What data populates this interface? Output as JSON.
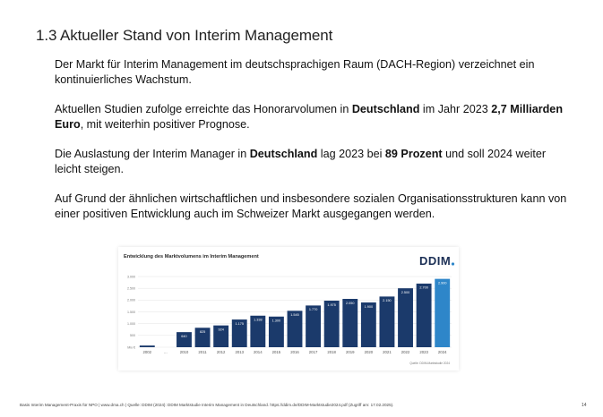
{
  "slide": {
    "title": "1.3 Aktueller Stand von Interim Management",
    "paragraphs": [
      [
        {
          "t": "Der Markt für Interim Management im deutschsprachigen Raum (DACH-Region) verzeichnet ein kontinuierliches Wachstum.",
          "b": false
        }
      ],
      [
        {
          "t": "Aktuellen Studien zufolge erreichte das Honorarvolumen in ",
          "b": false
        },
        {
          "t": "Deutschland",
          "b": true
        },
        {
          "t": " im Jahr 2023 ",
          "b": false
        },
        {
          "t": "2,7 Milliarden Euro",
          "b": true
        },
        {
          "t": ", mit weiterhin positiver Prognose.",
          "b": false
        }
      ],
      [
        {
          "t": "Die Auslastung der Interim Manager in ",
          "b": false
        },
        {
          "t": "Deutschland",
          "b": true
        },
        {
          "t": " lag 2023 bei ",
          "b": false
        },
        {
          "t": "89 Prozent",
          "b": true
        },
        {
          "t": " und soll 2024 weiter leicht steigen.",
          "b": false
        }
      ],
      [
        {
          "t": "Auf Grund der ähnlichen wirtschaftlichen und insbesondere sozialen Organisationsstrukturen kann von einer positiven Entwicklung auch im Schweizer Markt ausgegangen werden.",
          "b": false
        }
      ]
    ],
    "footer": "Basis Interim Management-Praxis für NPO | www.dma.ch | Quelle: DDIM (2024): DDIM Marktstudie Interim Management in Deutschland. https://ddim.de/DDIM-Marktstudie2024.pdf (Zugriff am: 17.02.2025).",
    "page_number": "14"
  },
  "chart_data": {
    "type": "bar",
    "title": "Entwicklung des Marktvolumens im Interim Management",
    "logo_text": "DDIM",
    "source": "Quelle: DDIM-Marktstudie 2024",
    "categories": [
      "2002",
      "...",
      "2010",
      "2011",
      "2012",
      "2013",
      "2014",
      "2015",
      "2016",
      "2017",
      "2018",
      "2019",
      "2020",
      "2021",
      "2022",
      "2023",
      "2024"
    ],
    "values": [
      70,
      null,
      640,
      825,
      924,
      1175,
      1338,
      1300,
      1545,
      1770,
      1975,
      2050,
      1900,
      2150,
      2500,
      2700,
      2900
    ],
    "value_labels": [
      "",
      "",
      "640",
      "825",
      "924",
      "1.175",
      "1.338",
      "1.300",
      "1.545",
      "1.770",
      "1.975",
      "2.050",
      "1.900",
      "2.150",
      "2.500",
      "2.700",
      "2.900"
    ],
    "yticks": [
      0,
      500,
      1000,
      1500,
      2000,
      2500,
      3000
    ],
    "ytick_labels": [
      "Mio €",
      "500",
      "1.000",
      "1.500",
      "2.000",
      "2.500",
      "3.000"
    ],
    "ylim": [
      0,
      3000
    ],
    "grid": true,
    "colors": {
      "bar": "#1b3a6b",
      "bar_highlight": "#2e86c9",
      "grid": "#e3e3e3",
      "logo_dot": "#2e86c9"
    },
    "highlight_category": "2024"
  }
}
